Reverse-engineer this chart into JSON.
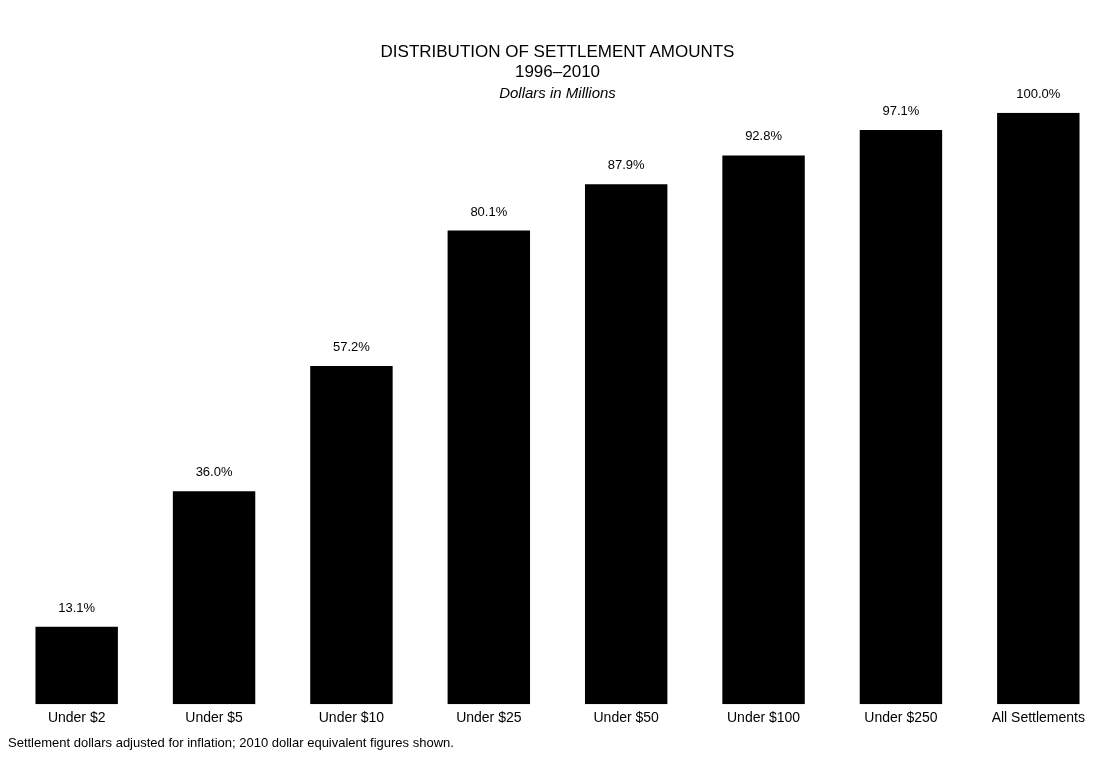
{
  "chart_data": {
    "type": "bar",
    "title": "DISTRIBUTION OF SETTLEMENT AMOUNTS\n1996–2010",
    "subtitle": "Dollars in Millions",
    "categories": [
      "Under $2",
      "Under $5",
      "Under $10",
      "Under $25",
      "Under $50",
      "Under $100",
      "Under $250",
      "All Settlements"
    ],
    "values": [
      13.1,
      36.0,
      57.2,
      80.1,
      87.9,
      92.8,
      97.1,
      100.0
    ],
    "value_labels": [
      "13.1%",
      "36.0%",
      "57.2%",
      "80.1%",
      "87.9%",
      "92.8%",
      "97.1%",
      "100.0%"
    ],
    "color": "#000000",
    "grid": false,
    "legend": false,
    "annotations": [
      "Settlement dollars adjusted for inflation; 2010 dollar equivalent figures shown."
    ]
  }
}
